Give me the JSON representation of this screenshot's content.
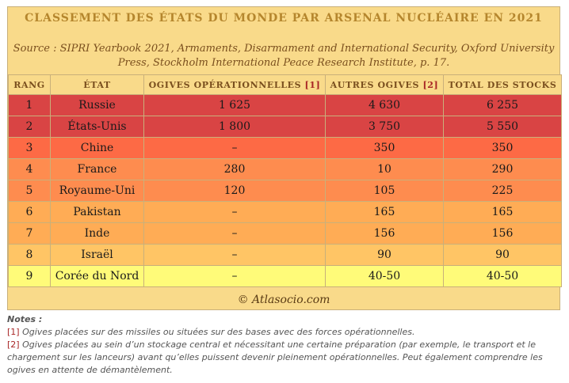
{
  "title": "CLASSEMENT DES ÉTATS DU MONDE PAR ARSENAL NUCLÉAIRE EN 2021",
  "source_line1": "Source : SIPRI Yearbook 2021, Armaments, Disarmament and International Security, Oxford University",
  "source_line2": "Press, Stockholm International Peace Research Institute, p. 17.",
  "headers": {
    "rank": "RANG",
    "state": "ÉTAT",
    "operational": "OGIVES OPÉRATIONNELLES",
    "operational_ref": "[1]",
    "other": "AUTRES OGIVES",
    "other_ref": "[2]",
    "total": "TOTAL DES STOCKS"
  },
  "rows": [
    {
      "rank": "1",
      "state": "Russie",
      "operational": "1 625",
      "other": "4 630",
      "total": "6 255",
      "color": "#d94444"
    },
    {
      "rank": "2",
      "state": "États-Unis",
      "operational": "1 800",
      "other": "3 750",
      "total": "5 550",
      "color": "#d94444"
    },
    {
      "rank": "3",
      "state": "Chine",
      "operational": "–",
      "other": "350",
      "total": "350",
      "color": "#fd6a45"
    },
    {
      "rank": "4",
      "state": "France",
      "operational": "280",
      "other": "10",
      "total": "290",
      "color": "#fe8c4f"
    },
    {
      "rank": "5",
      "state": "Royaume-Uni",
      "operational": "120",
      "other": "105",
      "total": "225",
      "color": "#fe8c4f"
    },
    {
      "rank": "6",
      "state": "Pakistan",
      "operational": "–",
      "other": "165",
      "total": "165",
      "color": "#ffac55"
    },
    {
      "rank": "7",
      "state": "Inde",
      "operational": "–",
      "other": "156",
      "total": "156",
      "color": "#ffac55"
    },
    {
      "rank": "8",
      "state": "Israël",
      "operational": "–",
      "other": "90",
      "total": "90",
      "color": "#ffc565"
    },
    {
      "rank": "9",
      "state": "Corée du Nord",
      "operational": "–",
      "other": "40-50",
      "total": "40-50",
      "color": "#fffb79"
    }
  ],
  "footer": "© Atlasocio.com",
  "notes": {
    "heading": "Notes :",
    "note1_num": "[1]",
    "note1_text": " Ogives placées sur des missiles ou situées sur des bases avec des forces opérationnelles.",
    "note2_num": "[2]",
    "note2_text": " Ogives placées au sein d’un stockage central et nécessitant une certaine préparation (par exemple, le transport et le chargement sur les lanceurs) avant qu’elles puissent devenir pleinement opérationnelles. Peut également comprendre les ogives en attente de démantèlement."
  }
}
